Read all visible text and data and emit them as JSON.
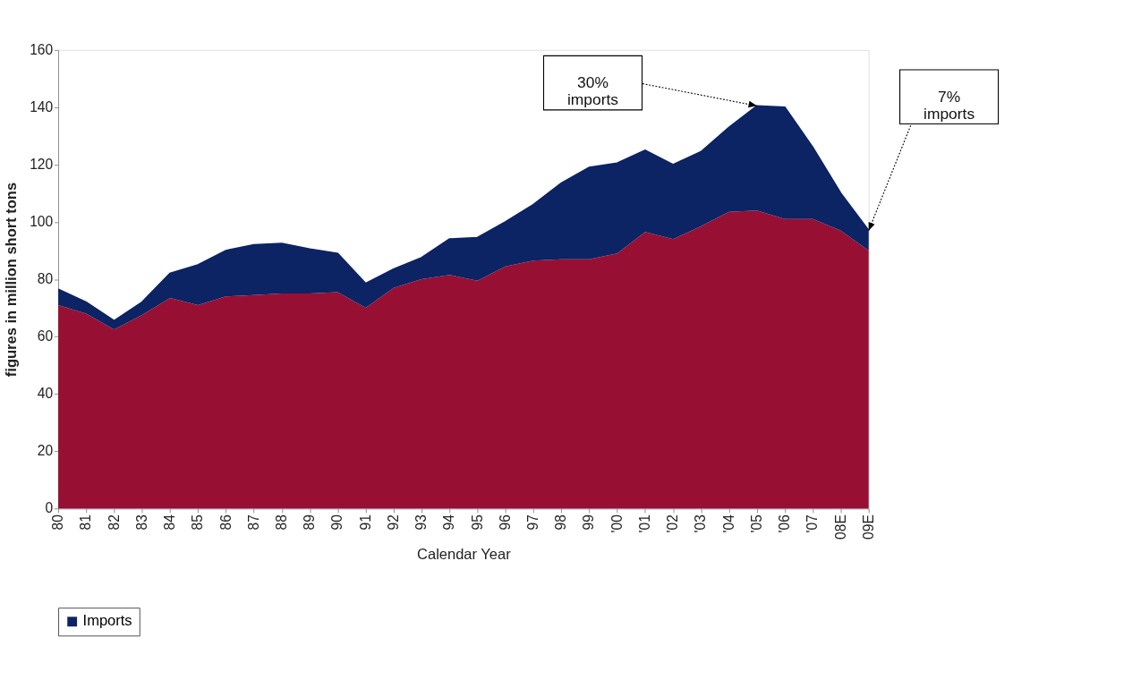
{
  "chart_data": {
    "type": "area",
    "stacked": true,
    "xlabel": "Calendar Year",
    "ylabel": "figures in million short tons",
    "categories": [
      "80",
      "81",
      "82",
      "83",
      "84",
      "85",
      "86",
      "87",
      "88",
      "89",
      "90",
      "91",
      "92",
      "93",
      "94",
      "95",
      "96",
      "97",
      "98",
      "99",
      "'00",
      "'01",
      "'02",
      "'03",
      "'04",
      "'05",
      "'06",
      "'07",
      "08E",
      "09E"
    ],
    "series": [
      {
        "color": "#971033",
        "values": [
          71,
          68,
          62.5,
          67.5,
          73.5,
          71,
          74,
          74.5,
          75,
          75,
          75.5,
          70,
          77,
          80,
          81.5,
          79.5,
          84.5,
          86.5,
          87,
          87,
          89,
          96.5,
          94,
          98.5,
          103.5,
          104,
          101,
          101,
          97,
          90
        ]
      },
      {
        "name": "Imports",
        "color": "#0c2364",
        "values": [
          5.5,
          4,
          3,
          4.5,
          8.5,
          14,
          16,
          17.5,
          17.5,
          15.5,
          13.5,
          8.5,
          6.5,
          7.5,
          12.5,
          15,
          15.5,
          19.5,
          26.5,
          32,
          31.5,
          28.5,
          26,
          26,
          29.5,
          36.5,
          39,
          25,
          13,
          7
        ]
      }
    ],
    "ylim": [
      0,
      160
    ],
    "yticks": [
      0,
      20,
      40,
      60,
      80,
      100,
      120,
      140,
      160
    ],
    "grid": false,
    "legend": "bottom",
    "annotations": [
      {
        "text": "30%\nimports",
        "x": "'05",
        "y": 140.5
      },
      {
        "text": "7%\nimports",
        "x": "09E",
        "y": 97
      }
    ]
  }
}
